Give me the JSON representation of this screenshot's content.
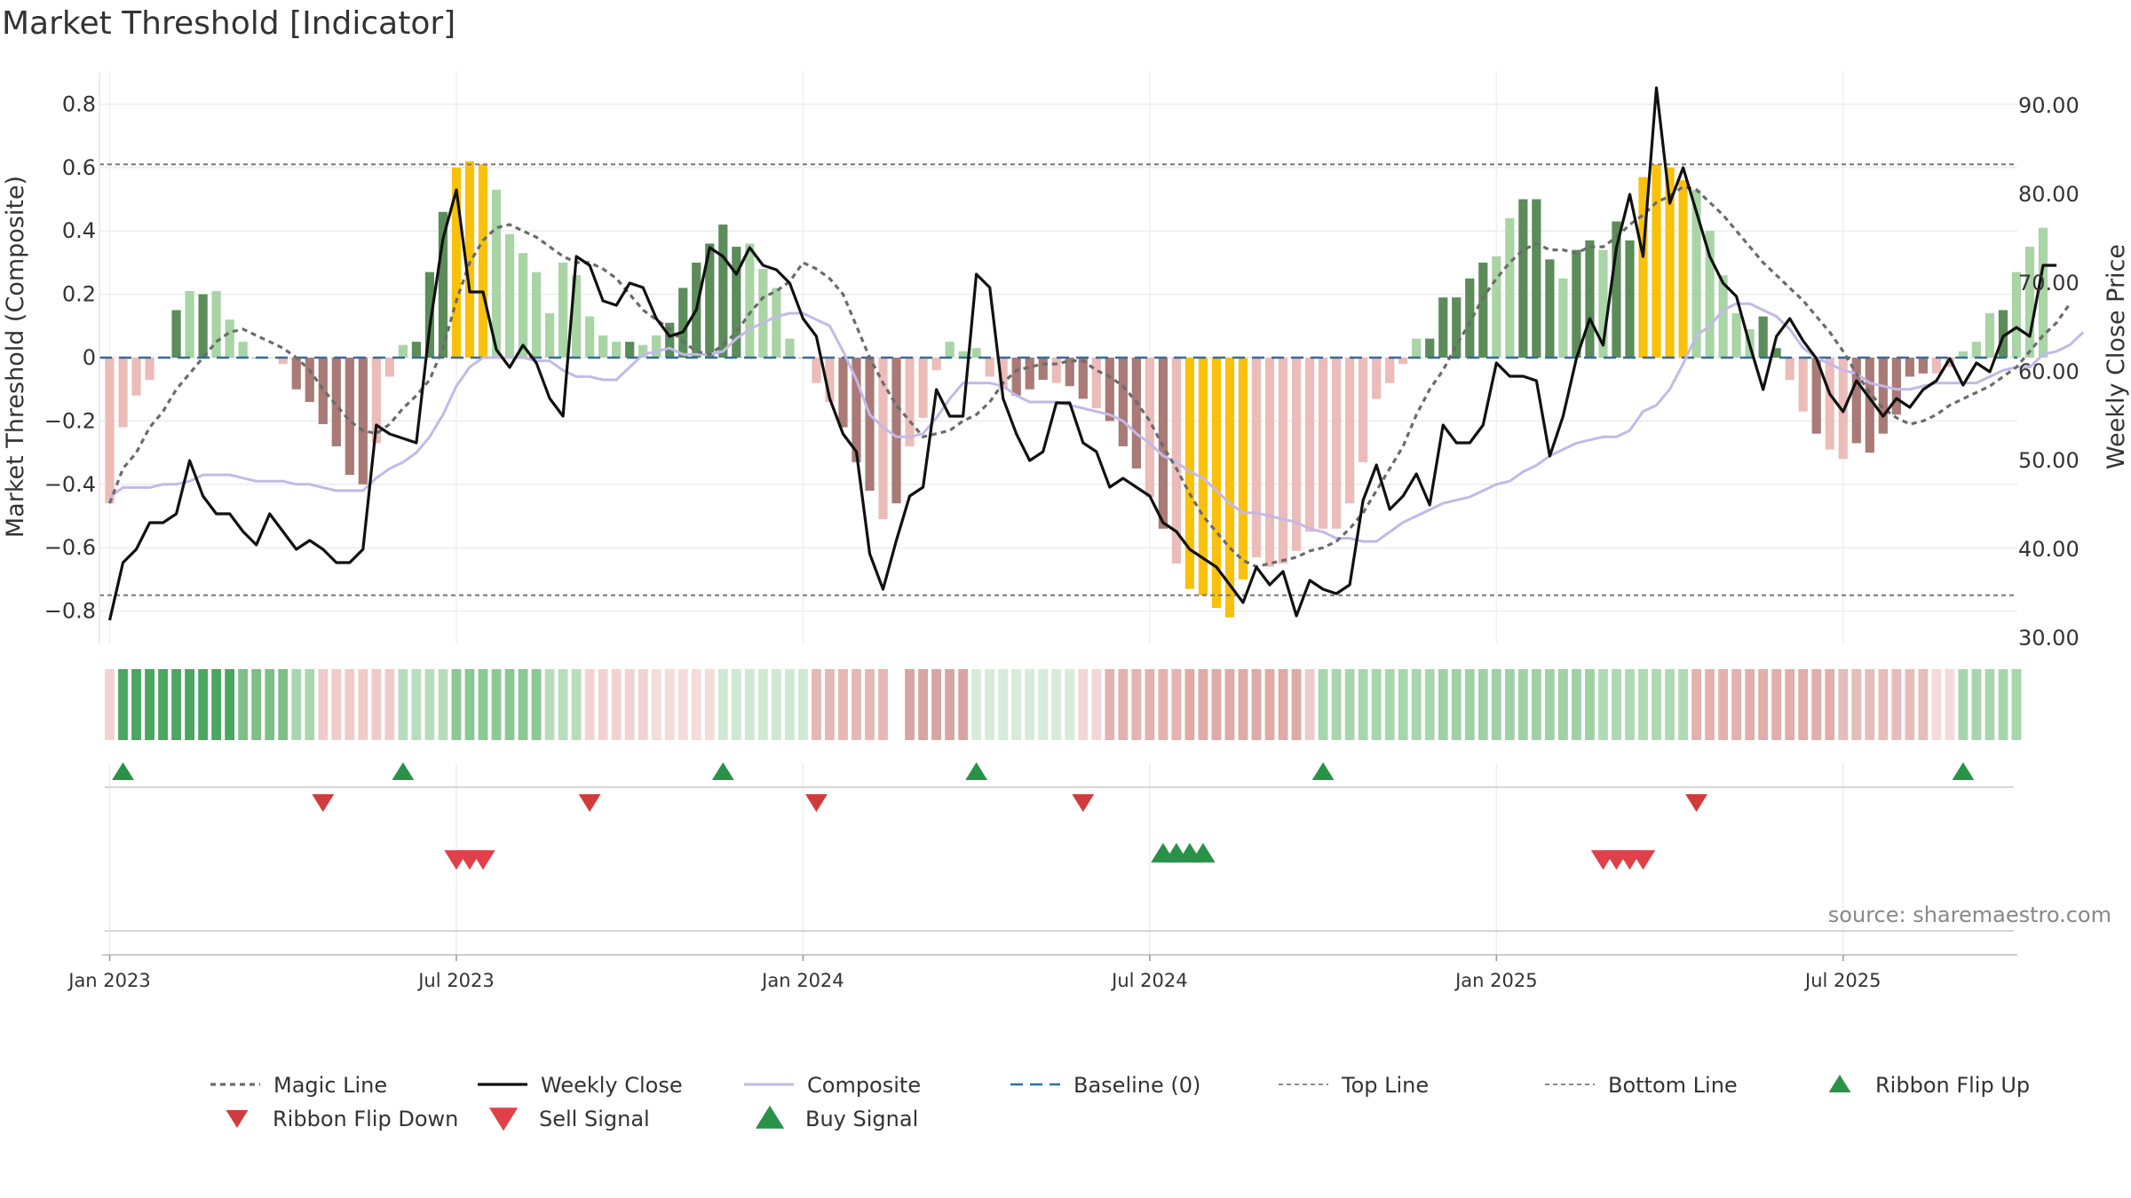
{
  "title": "Market Threshold [Indicator]",
  "source_text": "source: sharemaestro.com",
  "colors": {
    "pos_strong": "#5b8c5a",
    "pos_light": "#a9d4a6",
    "neg_strong": "#a97a76",
    "neg_light": "#ebbcb8",
    "extreme": "#f9c10b",
    "magic": "#6b6b6b",
    "close": "#111111",
    "composite": "#c3b9e8",
    "baseline": "#2c6fa6",
    "threshold": "#777777",
    "flip_up": "#2a9148",
    "flip_down": "#d23b3b",
    "buy": "#2a9148",
    "sell": "#e0404a"
  },
  "legend": [
    {
      "label": "Magic Line",
      "type": "dotted"
    },
    {
      "label": "Weekly Close",
      "type": "solid"
    },
    {
      "label": "Composite",
      "type": "composite"
    },
    {
      "label": "Baseline (0)",
      "type": "dashed"
    },
    {
      "label": "Top Line",
      "type": "thin-dashed"
    },
    {
      "label": "Bottom Line",
      "type": "thin-dashed"
    },
    {
      "label": "Ribbon Flip Up",
      "type": "tri-up"
    },
    {
      "label": "Ribbon Flip Down",
      "type": "tri-down"
    },
    {
      "label": "Sell Signal",
      "type": "sell"
    },
    {
      "label": "Buy Signal",
      "type": "buy"
    }
  ],
  "chart_data": {
    "type": "bar",
    "title": "Market Threshold [Indicator]",
    "ylabel_left": "Market Threshold (Composite)",
    "ylabel_right": "Weekly Close Price",
    "ylim_left": [
      -0.9,
      0.9
    ],
    "ylim_right": [
      26.7,
      94.2
    ],
    "yticks_left": [
      "0.8",
      "0.6",
      "0.4",
      "0.2",
      "0",
      "−0.2",
      "−0.4",
      "−0.6",
      "−0.8"
    ],
    "yticks_left_values": [
      0.8,
      0.6,
      0.4,
      0.2,
      0,
      -0.2,
      -0.4,
      -0.6,
      -0.8
    ],
    "yticks_right": [
      "90.00",
      "80.00",
      "70.00",
      "60.00",
      "50.00",
      "40.00",
      "30.00"
    ],
    "yticks_right_values": [
      90,
      80,
      70,
      60,
      50,
      40,
      30
    ],
    "xticks": [
      "Jan 2023",
      "Jul 2023",
      "Jan 2024",
      "Jul 2024",
      "Jan 2025",
      "Jul 2025"
    ],
    "xticks_week": [
      0,
      26,
      52,
      78,
      104,
      130
    ],
    "top_line": 0.61,
    "bottom_line": -0.75,
    "baseline": 0,
    "grid": true,
    "legend_position": "bottom",
    "weeks": 144,
    "composite_bars": [
      -0.46,
      -0.22,
      -0.12,
      -0.07,
      0,
      0.15,
      0.21,
      0.2,
      0.21,
      0.12,
      0.05,
      0,
      0,
      -0.02,
      -0.1,
      -0.14,
      -0.21,
      -0.28,
      -0.37,
      -0.4,
      -0.27,
      -0.06,
      0.04,
      0.05,
      0.27,
      0.46,
      0.6,
      0.62,
      0.61,
      0.53,
      0.39,
      0.33,
      0.27,
      0.14,
      0.3,
      0.26,
      0.13,
      0.07,
      0.05,
      0.05,
      0.04,
      0.07,
      0.11,
      0.22,
      0.3,
      0.36,
      0.42,
      0.35,
      0.36,
      0.28,
      0.22,
      0.06,
      0,
      -0.08,
      -0.14,
      -0.22,
      -0.33,
      -0.42,
      -0.51,
      -0.46,
      -0.28,
      -0.19,
      -0.04,
      0.05,
      0.02,
      0.03,
      -0.06,
      -0.1,
      -0.12,
      -0.1,
      -0.07,
      -0.08,
      -0.09,
      -0.13,
      -0.16,
      -0.2,
      -0.28,
      -0.35,
      -0.44,
      -0.54,
      -0.65,
      -0.73,
      -0.75,
      -0.79,
      -0.82,
      -0.7,
      -0.63,
      -0.66,
      -0.65,
      -0.61,
      -0.55,
      -0.54,
      -0.54,
      -0.46,
      -0.33,
      -0.13,
      -0.08,
      -0.02,
      0.06,
      0.06,
      0.19,
      0.19,
      0.25,
      0.3,
      0.32,
      0.44,
      0.5,
      0.5,
      0.31,
      0.25,
      0.34,
      0.37,
      0.34,
      0.43,
      0.37,
      0.57,
      0.61,
      0.6,
      0.56,
      0.53,
      0.4,
      0.26,
      0.14,
      0.09,
      0.13,
      0.03,
      -0.07,
      -0.17,
      -0.24,
      -0.29,
      -0.32,
      -0.27,
      -0.3,
      -0.24,
      -0.18,
      -0.06,
      -0.05,
      -0.05,
      -0.03,
      0.02,
      0.05,
      0.14,
      0.15,
      0.27,
      0.35,
      0.41
    ],
    "weekly_close": [
      32,
      38.5,
      40,
      43,
      43,
      44,
      50,
      46,
      44,
      44,
      42,
      40.5,
      44,
      42,
      40,
      41,
      40,
      38.5,
      38.5,
      40,
      54,
      53,
      52.5,
      52,
      65,
      75,
      80.5,
      69,
      69,
      62.5,
      60.5,
      63,
      61,
      57,
      55,
      73,
      72,
      68,
      67.5,
      70,
      69.5,
      66,
      64,
      64.5,
      67,
      74,
      73,
      71,
      74,
      72,
      71.5,
      70,
      66,
      64,
      57,
      53,
      51,
      39.5,
      35.5,
      41,
      46,
      47,
      58,
      55,
      55,
      71,
      69.5,
      57,
      53,
      50,
      51,
      56.5,
      56.5,
      52,
      51,
      47,
      48,
      47,
      46,
      43,
      42,
      40,
      39,
      38,
      36,
      34,
      38,
      36,
      37.5,
      32.5,
      36.5,
      35.5,
      35,
      36,
      45.5,
      49.5,
      44.5,
      46,
      48.5,
      45,
      54,
      52,
      52,
      54,
      61,
      59.5,
      59.5,
      59,
      50.5,
      55,
      61.5,
      66,
      63,
      74,
      80,
      73,
      92,
      79,
      83,
      78,
      73,
      70,
      68.5,
      63,
      58,
      64,
      66,
      63.5,
      61.5,
      57.5,
      55.5,
      59,
      57,
      55,
      57,
      56,
      58,
      59,
      61.5,
      58.5,
      61,
      60,
      64,
      65,
      64,
      72,
      72
    ],
    "composite_line": [
      -0.44,
      -0.41,
      -0.41,
      -0.41,
      -0.4,
      -0.4,
      -0.39,
      -0.37,
      -0.37,
      -0.37,
      -0.38,
      -0.39,
      -0.39,
      -0.39,
      -0.4,
      -0.4,
      -0.41,
      -0.42,
      -0.42,
      -0.42,
      -0.38,
      -0.35,
      -0.33,
      -0.3,
      -0.25,
      -0.18,
      -0.09,
      -0.03,
      0.0,
      -0.0,
      -0.0,
      -0.0,
      -0.01,
      -0.01,
      -0.04,
      -0.06,
      -0.06,
      -0.07,
      -0.07,
      -0.03,
      0.01,
      0.02,
      0.03,
      0.01,
      0.01,
      0.01,
      0.02,
      0.06,
      0.09,
      0.11,
      0.13,
      0.14,
      0.14,
      0.12,
      0.1,
      0.02,
      -0.07,
      -0.18,
      -0.22,
      -0.25,
      -0.25,
      -0.24,
      -0.19,
      -0.13,
      -0.08,
      -0.08,
      -0.08,
      -0.09,
      -0.12,
      -0.14,
      -0.14,
      -0.14,
      -0.15,
      -0.16,
      -0.17,
      -0.18,
      -0.2,
      -0.24,
      -0.27,
      -0.31,
      -0.33,
      -0.36,
      -0.38,
      -0.42,
      -0.46,
      -0.49,
      -0.49,
      -0.5,
      -0.51,
      -0.52,
      -0.54,
      -0.55,
      -0.57,
      -0.57,
      -0.58,
      -0.58,
      -0.55,
      -0.52,
      -0.5,
      -0.48,
      -0.46,
      -0.45,
      -0.44,
      -0.42,
      -0.4,
      -0.39,
      -0.36,
      -0.34,
      -0.31,
      -0.29,
      -0.27,
      -0.26,
      -0.25,
      -0.25,
      -0.23,
      -0.17,
      -0.15,
      -0.1,
      -0.02,
      0.07,
      0.1,
      0.15,
      0.17,
      0.17,
      0.15,
      0.13,
      0.09,
      0.03,
      -0.0,
      -0.02,
      -0.04,
      -0.05,
      -0.08,
      -0.09,
      -0.1,
      -0.1,
      -0.09,
      -0.08,
      -0.08,
      -0.08,
      -0.08,
      -0.06,
      -0.04,
      -0.03,
      -0.03,
      0.01,
      0.02,
      0.04,
      0.08
    ],
    "magic_line": [
      -0.46,
      -0.35,
      -0.3,
      -0.22,
      -0.17,
      -0.1,
      -0.05,
      0,
      0.05,
      0.08,
      0.09,
      0.07,
      0.05,
      0.03,
      0,
      -0.04,
      -0.1,
      -0.15,
      -0.2,
      -0.23,
      -0.24,
      -0.21,
      -0.16,
      -0.12,
      -0.07,
      0.03,
      0.18,
      0.3,
      0.37,
      0.41,
      0.42,
      0.4,
      0.38,
      0.35,
      0.32,
      0.3,
      0.3,
      0.28,
      0.25,
      0.2,
      0.15,
      0.12,
      0.09,
      0.05,
      0.02,
      0.01,
      0.04,
      0.08,
      0.14,
      0.19,
      0.21,
      0.24,
      0.3,
      0.28,
      0.25,
      0.2,
      0.1,
      0,
      -0.08,
      -0.15,
      -0.2,
      -0.25,
      -0.24,
      -0.23,
      -0.2,
      -0.18,
      -0.14,
      -0.08,
      -0.04,
      -0.03,
      -0.02,
      -0.02,
      -0.01,
      -0.01,
      -0.04,
      -0.06,
      -0.09,
      -0.14,
      -0.2,
      -0.28,
      -0.35,
      -0.43,
      -0.5,
      -0.55,
      -0.6,
      -0.64,
      -0.66,
      -0.65,
      -0.64,
      -0.63,
      -0.61,
      -0.6,
      -0.58,
      -0.54,
      -0.49,
      -0.42,
      -0.35,
      -0.28,
      -0.18,
      -0.1,
      -0.04,
      0.04,
      0.11,
      0.19,
      0.25,
      0.3,
      0.34,
      0.36,
      0.34,
      0.34,
      0.33,
      0.35,
      0.35,
      0.38,
      0.42,
      0.45,
      0.49,
      0.51,
      0.54,
      0.53,
      0.49,
      0.45,
      0.4,
      0.35,
      0.3,
      0.26,
      0.22,
      0.18,
      0.13,
      0.08,
      0.02,
      -0.05,
      -0.11,
      -0.16,
      -0.19,
      -0.21,
      -0.2,
      -0.18,
      -0.15,
      -0.13,
      -0.11,
      -0.09,
      -0.06,
      -0.03,
      0.02,
      0.07,
      0.11,
      0.17
    ],
    "bar_shade": "LLLLSSLSLLLSLLSSSSSSLLLSSSEEELLLLLLLLLLSLLSSSSSSLLLLSLLSSSLSLLLLLLLLSSSLSSLSSSLSLEEEEELLLLLLLLLLLLLSSSSSLLSSSLSSLSSEEEELLLLLSSLLSLLSSSSSSLLLLLSLLLSSSSSS",
    "ribbon": [
      {
        "start": 0,
        "end": 1,
        "color": "#f3d3d2"
      },
      {
        "start": 1,
        "end": 10,
        "color": "#4aa661"
      },
      {
        "start": 10,
        "end": 14,
        "color": "#7dbf87"
      },
      {
        "start": 14,
        "end": 16,
        "color": "#a9d6ae"
      },
      {
        "start": 16,
        "end": 22,
        "color": "#efcbc9"
      },
      {
        "start": 22,
        "end": 26,
        "color": "#b8ddbc"
      },
      {
        "start": 26,
        "end": 33,
        "color": "#8ac894"
      },
      {
        "start": 33,
        "end": 36,
        "color": "#b8ddbc"
      },
      {
        "start": 36,
        "end": 41,
        "color": "#f0d3d1"
      },
      {
        "start": 41,
        "end": 46,
        "color": "#f3dcda"
      },
      {
        "start": 46,
        "end": 53,
        "color": "#cfe8d2"
      },
      {
        "start": 53,
        "end": 59,
        "color": "#e6b8b5"
      },
      {
        "start": 59,
        "end": 60,
        "color": "#ffffff"
      },
      {
        "start": 60,
        "end": 65,
        "color": "#d9a5a2"
      },
      {
        "start": 65,
        "end": 73,
        "color": "#d6ebd8"
      },
      {
        "start": 73,
        "end": 75,
        "color": "#f1d8d6"
      },
      {
        "start": 75,
        "end": 81,
        "color": "#e4b2af"
      },
      {
        "start": 81,
        "end": 90,
        "color": "#e0aaa7"
      },
      {
        "start": 90,
        "end": 91,
        "color": "#efcbc9"
      },
      {
        "start": 91,
        "end": 100,
        "color": "#a7d6ac"
      },
      {
        "start": 100,
        "end": 112,
        "color": "#9fd1a5"
      },
      {
        "start": 112,
        "end": 119,
        "color": "#afd9b3"
      },
      {
        "start": 119,
        "end": 123,
        "color": "#e3b1ae"
      },
      {
        "start": 123,
        "end": 130,
        "color": "#e1aeab"
      },
      {
        "start": 130,
        "end": 137,
        "color": "#e6bdba"
      },
      {
        "start": 137,
        "end": 139,
        "color": "#f4dad8"
      },
      {
        "start": 139,
        "end": 144,
        "color": "#a7d6ac"
      }
    ],
    "ribbon_flip_up": [
      1,
      22,
      46,
      65,
      91,
      139
    ],
    "ribbon_flip_down": [
      16,
      36,
      53,
      73,
      119
    ],
    "sell_signals": [
      26,
      27,
      28,
      112,
      113,
      114,
      115
    ],
    "buy_signals": [
      79,
      80,
      81,
      82
    ]
  }
}
